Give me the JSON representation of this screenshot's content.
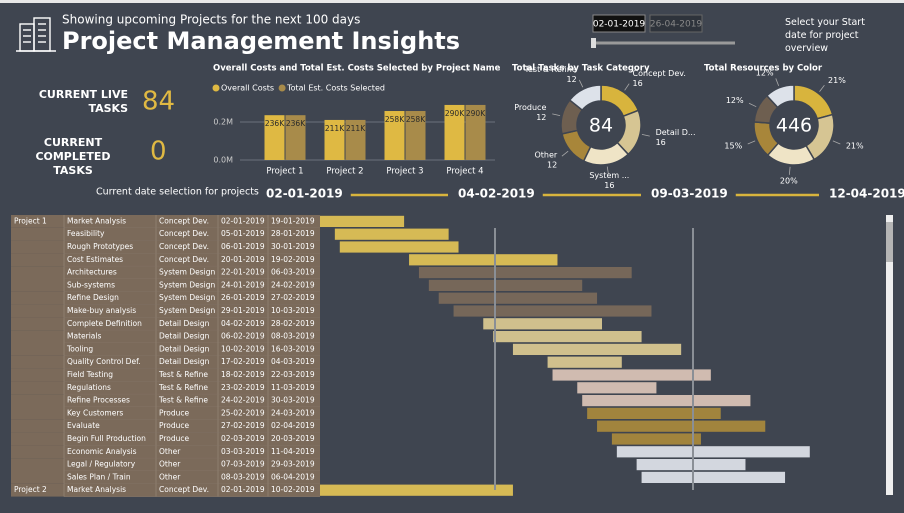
{
  "header": {
    "subtitle": "Showing upcoming Projects for the next 100 days",
    "title": "Project Management Insights"
  },
  "date_filter": {
    "start": "02-01-2019",
    "end": "26-04-2019",
    "note": "Select your Start date for project overview"
  },
  "kpis": [
    {
      "label": "CURRENT LIVE TASKS",
      "value": 84
    },
    {
      "label": "CURRENT COMPLETED TASKS",
      "value": 0
    }
  ],
  "chart_data": [
    {
      "type": "bar",
      "title": "Overall Costs and Total Est. Costs Selected by Project Name",
      "categories": [
        "Project 1",
        "Project 2",
        "Project 3",
        "Project 4"
      ],
      "series": [
        {
          "name": "Overall Costs",
          "color": "#dfb943",
          "values": [
            236000,
            211000,
            258000,
            290000
          ],
          "value_labels": [
            "236K",
            "211K",
            "258K",
            "290K"
          ]
        },
        {
          "name": "Total Est. Costs Selected",
          "color": "#a88b4a",
          "values": [
            236000,
            211000,
            258000,
            290000
          ],
          "value_labels": [
            "236K",
            "211K",
            "258K",
            "290K"
          ]
        }
      ],
      "ylim": [
        0,
        316000
      ],
      "yticks": [
        {
          "value": 0,
          "label": "0.0M"
        },
        {
          "value": 200000,
          "label": "0.2M"
        }
      ],
      "grid": true
    },
    {
      "type": "donut",
      "title": "Total Tasks by Task Category",
      "total": 84,
      "categories": [
        "Concept Dev.",
        "Detail D...",
        "System ...",
        "Other",
        "Produce",
        "Test & Refine"
      ],
      "values": [
        16,
        16,
        16,
        12,
        12,
        12
      ],
      "colors": [
        "#d8b43d",
        "#d6c593",
        "#efe4c6",
        "#a8863a",
        "#6e5f50",
        "#dde2ea"
      ]
    },
    {
      "type": "donut",
      "title": "Total Resources by Color",
      "total": 446,
      "values": [
        21,
        21,
        20,
        15,
        12,
        12
      ],
      "value_labels": [
        "21%",
        "21%",
        "20%",
        "15%",
        "12%",
        "12%"
      ],
      "colors": [
        "#d8b43d",
        "#d6c593",
        "#efe4c6",
        "#a8863a",
        "#6e5f50",
        "#dde2ea"
      ]
    }
  ],
  "timeline": {
    "label": "Current  date  selection for projects",
    "dates": [
      "02-01-2019",
      "04-02-2019",
      "09-03-2019",
      "12-04-2019"
    ]
  },
  "gantt": {
    "category_colors": {
      "Concept Dev.": "#e3c456",
      "System Design": "#7b6a5a",
      "Detail Design": "#dccb92",
      "Test & Refine": "#dcc6b8",
      "Produce": "#a98a3c",
      "Other": "#e0e4eb"
    },
    "groups": [
      {
        "project": "Project 1",
        "tasks": [
          [
            "Market Analysis",
            "Concept Dev.",
            "02-01-2019",
            "19-01-2019"
          ],
          [
            "Feasibility",
            "Concept Dev.",
            "05-01-2019",
            "28-01-2019"
          ],
          [
            "Rough Prototypes",
            "Concept Dev.",
            "06-01-2019",
            "30-01-2019"
          ],
          [
            "Cost Estimates",
            "Concept Dev.",
            "20-01-2019",
            "19-02-2019"
          ],
          [
            "Architectures",
            "System Design",
            "22-01-2019",
            "06-03-2019"
          ],
          [
            "Sub-systems",
            "System Design",
            "24-01-2019",
            "24-02-2019"
          ],
          [
            "Refine Design",
            "System Design",
            "26-01-2019",
            "27-02-2019"
          ],
          [
            "Make-buy analysis",
            "System Design",
            "29-01-2019",
            "10-03-2019"
          ],
          [
            "Complete Definition",
            "Detail Design",
            "04-02-2019",
            "28-02-2019"
          ],
          [
            "Materials",
            "Detail Design",
            "06-02-2019",
            "08-03-2019"
          ],
          [
            "Tooling",
            "Detail Design",
            "10-02-2019",
            "16-03-2019"
          ],
          [
            "Quality Control Def.",
            "Detail Design",
            "17-02-2019",
            "04-03-2019"
          ],
          [
            "Field Testing",
            "Test & Refine",
            "18-02-2019",
            "22-03-2019"
          ],
          [
            "Regulations",
            "Test & Refine",
            "23-02-2019",
            "11-03-2019"
          ],
          [
            "Refine Processes",
            "Test & Refine",
            "24-02-2019",
            "30-03-2019"
          ],
          [
            "Key Customers",
            "Produce",
            "25-02-2019",
            "24-03-2019"
          ],
          [
            "Evaluate",
            "Produce",
            "27-02-2019",
            "02-04-2019"
          ],
          [
            "Begin Full Production",
            "Produce",
            "02-03-2019",
            "20-03-2019"
          ],
          [
            "Economic Analysis",
            "Other",
            "03-03-2019",
            "11-04-2019"
          ],
          [
            "Legal / Regulatory",
            "Other",
            "07-03-2019",
            "29-03-2019"
          ],
          [
            "Sales Plan / Train",
            "Other",
            "08-03-2019",
            "06-04-2019"
          ]
        ]
      },
      {
        "project": "Project 2",
        "tasks": [
          [
            "Market Analysis",
            "Concept Dev.",
            "02-01-2019",
            "10-02-2019"
          ]
        ]
      }
    ]
  }
}
